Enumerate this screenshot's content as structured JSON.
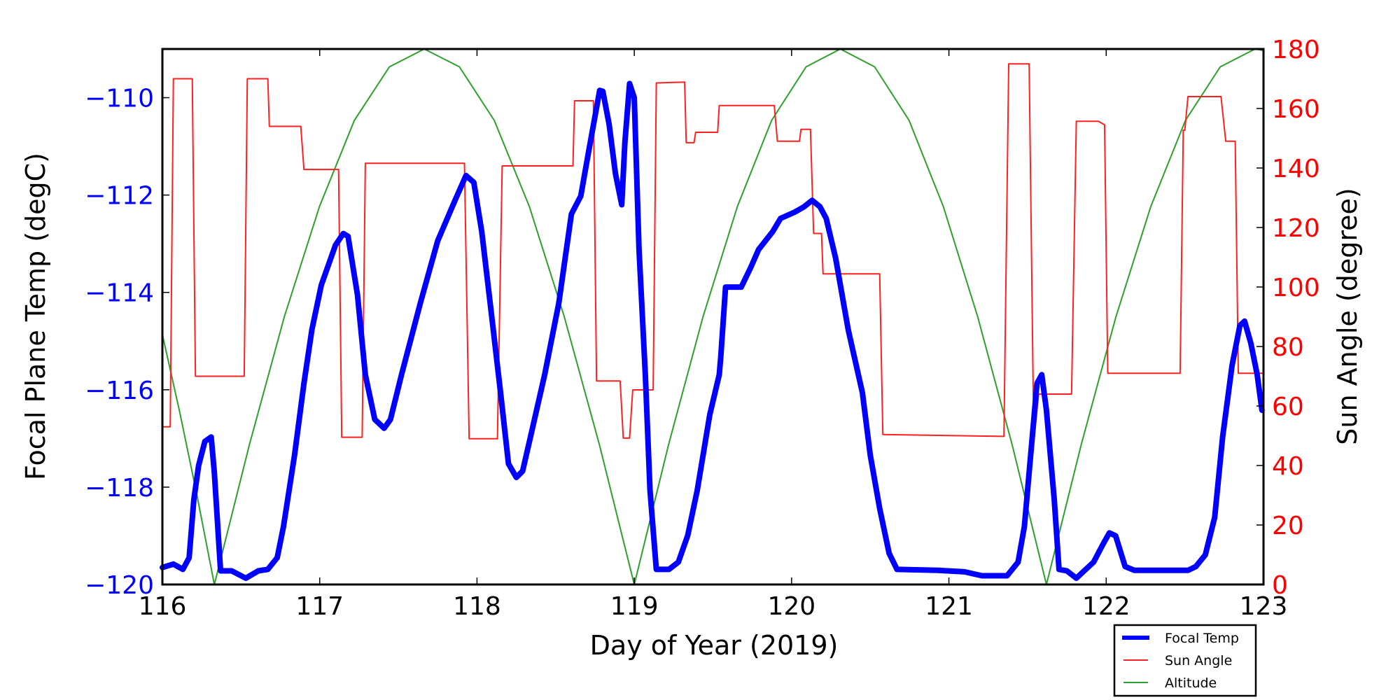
{
  "chart_data": {
    "type": "line",
    "xlabel": "Day of Year (2019)",
    "ylabel_left": "Focal Plane Temp (degC)",
    "ylabel_right": "Sun Angle (degree)",
    "xlim": [
      116,
      123
    ],
    "ylim_left": [
      -120,
      -109
    ],
    "ylim_right": [
      0,
      180
    ],
    "x_ticks": [
      "116",
      "117",
      "118",
      "119",
      "120",
      "121",
      "122",
      "123"
    ],
    "y_ticks_left": [
      "−120",
      "−118",
      "−116",
      "−114",
      "−112",
      "−110"
    ],
    "y_ticks_right": [
      "0",
      "20",
      "40",
      "60",
      "80",
      "100",
      "120",
      "140",
      "160",
      "180"
    ],
    "grid": false,
    "legend_position": "below-right",
    "colors": {
      "left_axis": "#0000ff",
      "right_axis": "#ff0000"
    },
    "series": [
      {
        "name": "Focal Temp",
        "axis": "left",
        "color": "#0000ff",
        "x": [
          116.0,
          116.07,
          116.13,
          116.17,
          116.2,
          116.23,
          116.27,
          116.31,
          116.33,
          116.37,
          116.44,
          116.53,
          116.61,
          116.67,
          116.73,
          116.77,
          116.84,
          116.9,
          116.95,
          117.01,
          117.1,
          117.15,
          117.18,
          117.24,
          117.29,
          117.35,
          117.41,
          117.45,
          117.52,
          117.64,
          117.75,
          117.86,
          117.93,
          117.98,
          118.03,
          118.09,
          118.15,
          118.2,
          118.25,
          118.29,
          118.34,
          118.43,
          118.52,
          118.6,
          118.66,
          118.71,
          118.78,
          118.8,
          118.84,
          118.88,
          118.92,
          118.94,
          118.97,
          119.0,
          119.03,
          119.07,
          119.1,
          119.14,
          119.22,
          119.28,
          119.34,
          119.4,
          119.48,
          119.54,
          119.55,
          119.58,
          119.68,
          119.74,
          119.79,
          119.88,
          119.93,
          120.02,
          120.08,
          120.13,
          120.18,
          120.22,
          120.28,
          120.36,
          120.45,
          120.5,
          120.56,
          120.62,
          120.67,
          120.93,
          121.1,
          121.21,
          121.37,
          121.44,
          121.48,
          121.52,
          121.56,
          121.59,
          121.62,
          121.67,
          121.7,
          121.75,
          121.81,
          121.86,
          121.92,
          121.98,
          122.02,
          122.06,
          122.12,
          122.18,
          122.35,
          122.52,
          122.57,
          122.63,
          122.69,
          122.74,
          122.8,
          122.85,
          122.88,
          122.92,
          122.96,
          122.99
        ],
        "y": [
          -119.65,
          -119.58,
          -119.69,
          -119.45,
          -118.26,
          -117.56,
          -117.06,
          -116.97,
          -117.7,
          -119.72,
          -119.72,
          -119.87,
          -119.72,
          -119.69,
          -119.45,
          -118.81,
          -117.34,
          -115.87,
          -114.77,
          -113.85,
          -113.03,
          -112.79,
          -112.85,
          -114.04,
          -115.69,
          -116.61,
          -116.79,
          -116.61,
          -115.69,
          -114.22,
          -112.94,
          -112.11,
          -111.6,
          -111.74,
          -112.75,
          -114.4,
          -116.06,
          -117.52,
          -117.8,
          -117.67,
          -116.97,
          -115.69,
          -114.22,
          -112.39,
          -112.02,
          -111.1,
          -109.85,
          -109.87,
          -110.55,
          -111.56,
          -112.2,
          -110.92,
          -109.71,
          -110.0,
          -113.12,
          -115.69,
          -118.07,
          -119.69,
          -119.69,
          -119.54,
          -118.99,
          -118.07,
          -116.51,
          -115.69,
          -115.32,
          -113.89,
          -113.89,
          -113.49,
          -113.12,
          -112.75,
          -112.48,
          -112.35,
          -112.24,
          -112.11,
          -112.24,
          -112.48,
          -113.3,
          -114.77,
          -116.06,
          -117.34,
          -118.44,
          -119.36,
          -119.69,
          -119.71,
          -119.74,
          -119.82,
          -119.82,
          -119.54,
          -118.81,
          -117.34,
          -115.87,
          -115.69,
          -116.42,
          -118.26,
          -119.69,
          -119.72,
          -119.87,
          -119.72,
          -119.54,
          -119.17,
          -118.94,
          -119.0,
          -119.63,
          -119.71,
          -119.71,
          -119.71,
          -119.63,
          -119.39,
          -118.62,
          -116.97,
          -115.5,
          -114.68,
          -114.59,
          -115.05,
          -115.69,
          -116.42
        ]
      },
      {
        "name": "Sun Angle",
        "axis": "right",
        "color": "#ff2020",
        "x": [
          116.0,
          116.05,
          116.07,
          116.19,
          116.21,
          116.52,
          116.54,
          116.67,
          116.68,
          116.88,
          116.9,
          117.12,
          117.14,
          117.27,
          117.29,
          117.92,
          117.95,
          118.13,
          118.16,
          118.61,
          118.62,
          118.74,
          118.76,
          118.91,
          118.93,
          118.97,
          118.99,
          119.12,
          119.14,
          119.32,
          119.33,
          119.38,
          119.39,
          119.53,
          119.54,
          119.89,
          119.91,
          120.05,
          120.06,
          120.12,
          120.14,
          120.19,
          120.2,
          120.56,
          120.58,
          121.35,
          121.38,
          121.51,
          121.54,
          121.57,
          121.78,
          121.81,
          121.95,
          121.99,
          122.01,
          122.47,
          122.49,
          122.5,
          122.52,
          122.73,
          122.76,
          122.82,
          122.84,
          123.0
        ],
        "y": [
          53,
          53,
          170,
          170,
          70,
          70,
          170,
          170,
          154,
          154,
          139.5,
          139.5,
          49.5,
          49.5,
          141.6,
          141.6,
          49,
          49,
          140.7,
          140.7,
          162.6,
          162.6,
          68.4,
          68.4,
          49.2,
          49.2,
          65.4,
          65.4,
          168.6,
          168.9,
          148.5,
          148.5,
          152,
          152,
          161,
          161,
          149,
          149,
          153,
          153,
          118,
          118,
          104.4,
          104.4,
          50.4,
          49.8,
          175,
          175,
          48,
          64,
          64,
          155.7,
          155.7,
          154.5,
          71,
          71,
          152.7,
          152.7,
          164,
          164,
          149,
          149,
          71,
          71
        ]
      },
      {
        "name": "Altitude",
        "axis": "right",
        "color": "#2ca02c",
        "x": [
          116.0,
          116.11,
          116.22,
          116.33,
          116.553,
          116.775,
          116.998,
          117.22,
          117.443,
          117.665,
          117.888,
          118.11,
          118.333,
          118.555,
          118.778,
          119.0,
          119.218,
          119.437,
          119.655,
          119.873,
          120.092,
          120.31,
          120.528,
          120.747,
          120.965,
          121.183,
          121.402,
          121.62,
          121.841,
          122.062,
          122.283,
          122.504,
          122.725,
          122.946,
          123.0
        ],
        "y": [
          84,
          58,
          30,
          0,
          47,
          90,
          127,
          156,
          174,
          180,
          174,
          156,
          127,
          90,
          47,
          0,
          47,
          90,
          127,
          156,
          174,
          180,
          174,
          156,
          127,
          90,
          47,
          0,
          47,
          90,
          127,
          156,
          174,
          180,
          179.5
        ]
      }
    ]
  }
}
